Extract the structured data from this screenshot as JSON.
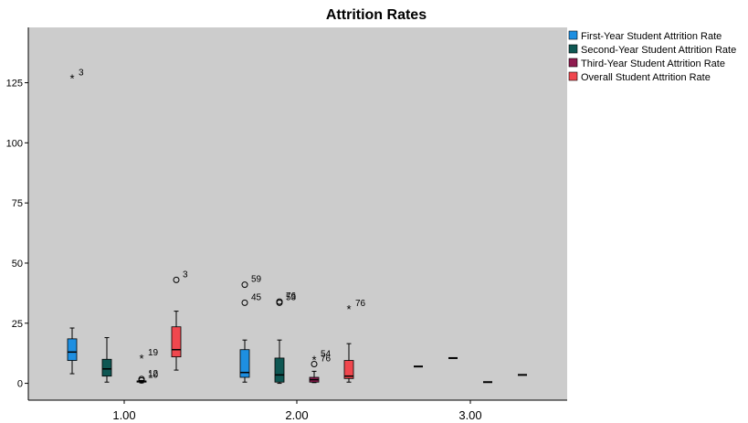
{
  "chart_data": {
    "type": "box",
    "title": "Attrition Rates",
    "categories": [
      "1.00",
      "2.00",
      "3.00"
    ],
    "y_ticks": [
      "0",
      "25",
      "50",
      "75",
      "100",
      "125"
    ],
    "ylim": [
      -7,
      148
    ],
    "grid": false,
    "legend_position": "right",
    "series": [
      {
        "name": "First-Year Student Attrition Rate",
        "color": "#1E8FE1",
        "boxes": [
          {
            "category": "1.00",
            "min": 4,
            "q1": 9.5,
            "median": 13,
            "q3": 18.5,
            "max": 23,
            "outliers": [
              {
                "value": 127,
                "label": "3",
                "marker": "star"
              }
            ]
          },
          {
            "category": "2.00",
            "min": 0.5,
            "q1": 2.5,
            "median": 4.5,
            "q3": 14,
            "max": 18,
            "outliers": [
              {
                "value": 41,
                "label": "59",
                "marker": "circle"
              },
              {
                "value": 33.5,
                "label": "45",
                "marker": "circle"
              }
            ]
          },
          {
            "category": "3.00",
            "min": 7,
            "q1": 7,
            "median": 7,
            "q3": 7,
            "max": 7,
            "outliers": []
          }
        ]
      },
      {
        "name": "Second-Year Student Attrition Rate",
        "color": "#0E5753",
        "boxes": [
          {
            "category": "1.00",
            "min": 0.5,
            "q1": 3,
            "median": 6,
            "q3": 10,
            "max": 19,
            "outliers": []
          },
          {
            "category": "2.00",
            "min": 0,
            "q1": 0.5,
            "median": 3.5,
            "q3": 10.5,
            "max": 18,
            "outliers": [
              {
                "value": 34,
                "label": "76",
                "marker": "circle"
              },
              {
                "value": 33.5,
                "label": "53",
                "marker": "circle"
              }
            ]
          },
          {
            "category": "3.00",
            "min": 10.5,
            "q1": 10.5,
            "median": 10.5,
            "q3": 10.5,
            "max": 10.5,
            "outliers": []
          }
        ]
      },
      {
        "name": "Third-Year Student Attrition Rate",
        "color": "#8F1B4F",
        "boxes": [
          {
            "category": "1.00",
            "min": 0.2,
            "q1": 0.5,
            "median": 0.8,
            "q3": 1,
            "max": 1.2,
            "outliers": [
              {
                "value": 10.5,
                "label": "19",
                "marker": "star"
              },
              {
                "value": 1.8,
                "label": "12",
                "marker": "circle"
              },
              {
                "value": 1.2,
                "label": "10",
                "marker": "circle"
              }
            ]
          },
          {
            "category": "2.00",
            "min": 0.3,
            "q1": 0.5,
            "median": 1.5,
            "q3": 2.5,
            "max": 5,
            "outliers": [
              {
                "value": 10,
                "label": "54",
                "marker": "star"
              },
              {
                "value": 8,
                "label": "76",
                "marker": "circle"
              }
            ]
          },
          {
            "category": "3.00",
            "min": 0.5,
            "q1": 0.5,
            "median": 0.5,
            "q3": 0.5,
            "max": 0.5,
            "outliers": []
          }
        ]
      },
      {
        "name": "Overall Student Attrition Rate",
        "color": "#F0474E",
        "boxes": [
          {
            "category": "1.00",
            "min": 5.5,
            "q1": 11,
            "median": 14,
            "q3": 23.5,
            "max": 30,
            "outliers": [
              {
                "value": 43,
                "label": "3",
                "marker": "circle"
              }
            ]
          },
          {
            "category": "2.00",
            "min": 0.5,
            "q1": 2,
            "median": 3,
            "q3": 9.5,
            "max": 16.5,
            "outliers": [
              {
                "value": 31,
                "label": "76",
                "marker": "star"
              }
            ]
          },
          {
            "category": "3.00",
            "min": 3.5,
            "q1": 3.5,
            "median": 3.5,
            "q3": 3.5,
            "max": 3.5,
            "outliers": []
          }
        ]
      }
    ]
  }
}
